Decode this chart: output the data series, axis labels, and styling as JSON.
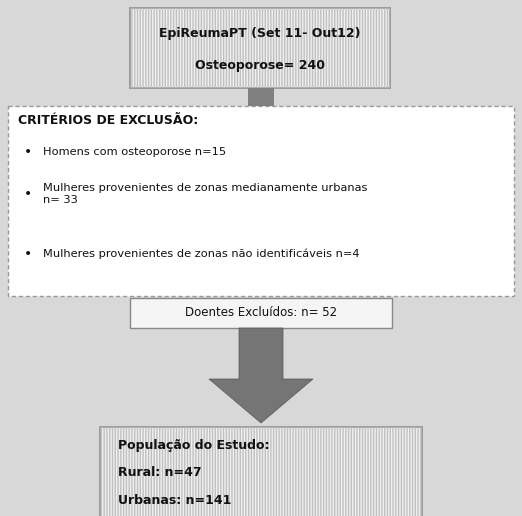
{
  "bg_color": "#d8d8d8",
  "fig_bg_color": "#d8d8d8",
  "box1_text_line1": "EpiReumaPT (Set 11- Out12)",
  "box1_text_line2": "Osteoporose= 240",
  "box2_title": "CRITÉRIOS DE EXCLUSÃO:",
  "box2_bullet1": "Homens com osteoporose n=15",
  "box2_bullet2": "Mulheres provenientes de zonas medianamente urbanas\nn= 33",
  "box2_bullet3": "Mulheres provenientes de zonas não identificáveis n=4",
  "box3_text": "Doentes Excluídos: n= 52",
  "box4_text_line1": "População do Estudo:",
  "box4_text_line2": "Rural: n=47",
  "box4_text_line3": "Urbanas: n=141",
  "hatch_facecolor": "#f0f0f0",
  "hatch_edgecolor": "#c0c0c0",
  "hatch_pattern": "||||||",
  "box_border_color": "#888888",
  "dashed_border_color": "#999999",
  "connector_color": "#808080",
  "arrow_color": "#757575",
  "text_color": "#111111",
  "plain_box_facecolor": "#f5f5f5"
}
